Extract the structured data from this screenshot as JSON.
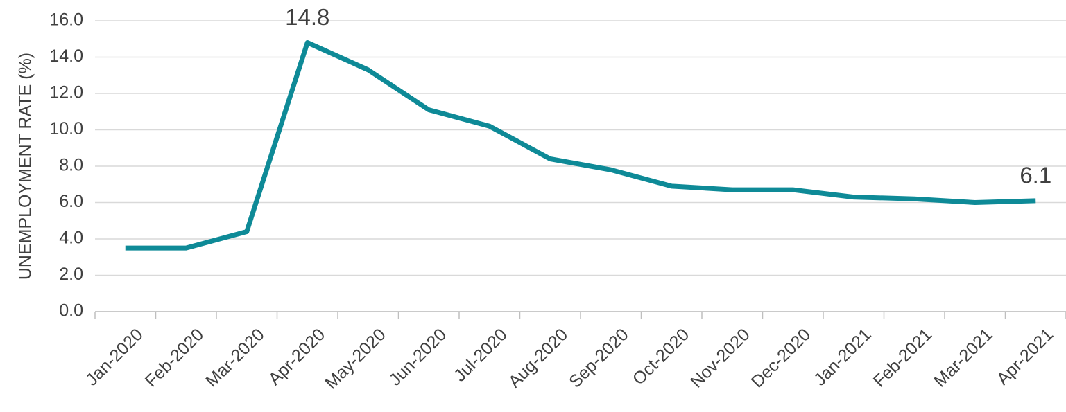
{
  "chart_data": {
    "type": "line",
    "y_label": "UNEMPLOYMENT RATE (%)",
    "categories": [
      "Jan-2020",
      "Feb-2020",
      "Mar-2020",
      "Apr-2020",
      "May-2020",
      "Jun-2020",
      "Jul-2020",
      "Aug-2020",
      "Sep-2020",
      "Oct-2020",
      "Nov-2020",
      "Dec-2020",
      "Jan-2021",
      "Feb-2021",
      "Mar-2021",
      "Apr-2021"
    ],
    "series": [
      {
        "name": "Unemployment rate",
        "color": "#0e8a97",
        "values": [
          3.5,
          3.5,
          4.4,
          14.8,
          13.3,
          11.1,
          10.2,
          8.4,
          7.8,
          6.9,
          6.7,
          6.7,
          6.3,
          6.2,
          6.0,
          6.1
        ],
        "value_labels": [
          null,
          null,
          null,
          "14.8",
          null,
          null,
          null,
          null,
          null,
          null,
          null,
          null,
          null,
          null,
          null,
          "6.1"
        ]
      }
    ],
    "ylim": [
      0,
      16
    ],
    "yticks": [
      {
        "value": 0,
        "label": "0.0"
      },
      {
        "value": 2,
        "label": "2.0"
      },
      {
        "value": 4,
        "label": "4.0"
      },
      {
        "value": 6,
        "label": "6.0"
      },
      {
        "value": 8,
        "label": "8.0"
      },
      {
        "value": 10,
        "label": "10.0"
      },
      {
        "value": 12,
        "label": "12.0"
      },
      {
        "value": 14,
        "label": "14.0"
      },
      {
        "value": 16,
        "label": "16.0"
      }
    ],
    "grid": true
  }
}
